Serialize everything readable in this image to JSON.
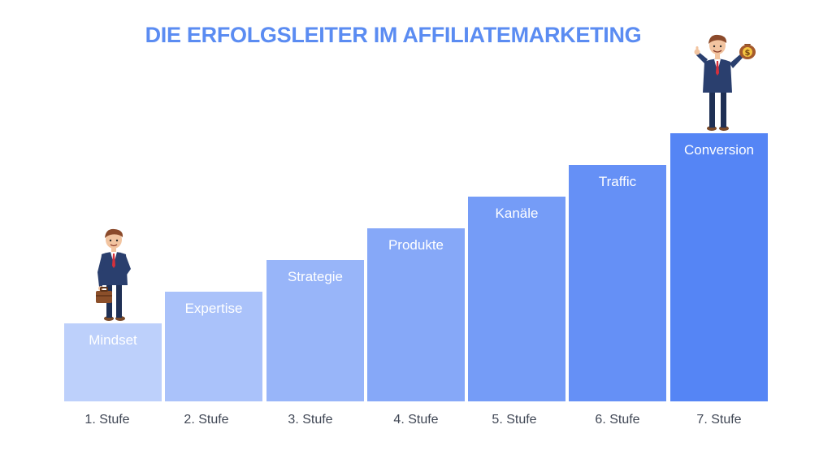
{
  "title": "DIE ERFOLGSLEITER IM AFFILIATEMARKETING",
  "steps": [
    {
      "name": "Mindset",
      "stage": "1. Stufe",
      "level": 1,
      "color": "#bdd0fb"
    },
    {
      "name": "Expertise",
      "stage": "2. Stufe",
      "level": 2,
      "color": "#aac2fa"
    },
    {
      "name": "Strategie",
      "stage": "3. Stufe",
      "level": 3,
      "color": "#98b5f9"
    },
    {
      "name": "Produkte",
      "stage": "4. Stufe",
      "level": 4,
      "color": "#86a8f8"
    },
    {
      "name": "Kanäle",
      "stage": "5. Stufe",
      "level": 5,
      "color": "#759cf7"
    },
    {
      "name": "Traffic",
      "stage": "6. Stufe",
      "level": 6,
      "color": "#6590f6"
    },
    {
      "name": "Conversion",
      "stage": "7. Stufe",
      "level": 7,
      "color": "#5585f5"
    }
  ],
  "icons": {
    "start_person": "businessman-with-briefcase-icon",
    "goal_person": "businessman-with-money-bag-icon",
    "money_symbol": "$"
  }
}
